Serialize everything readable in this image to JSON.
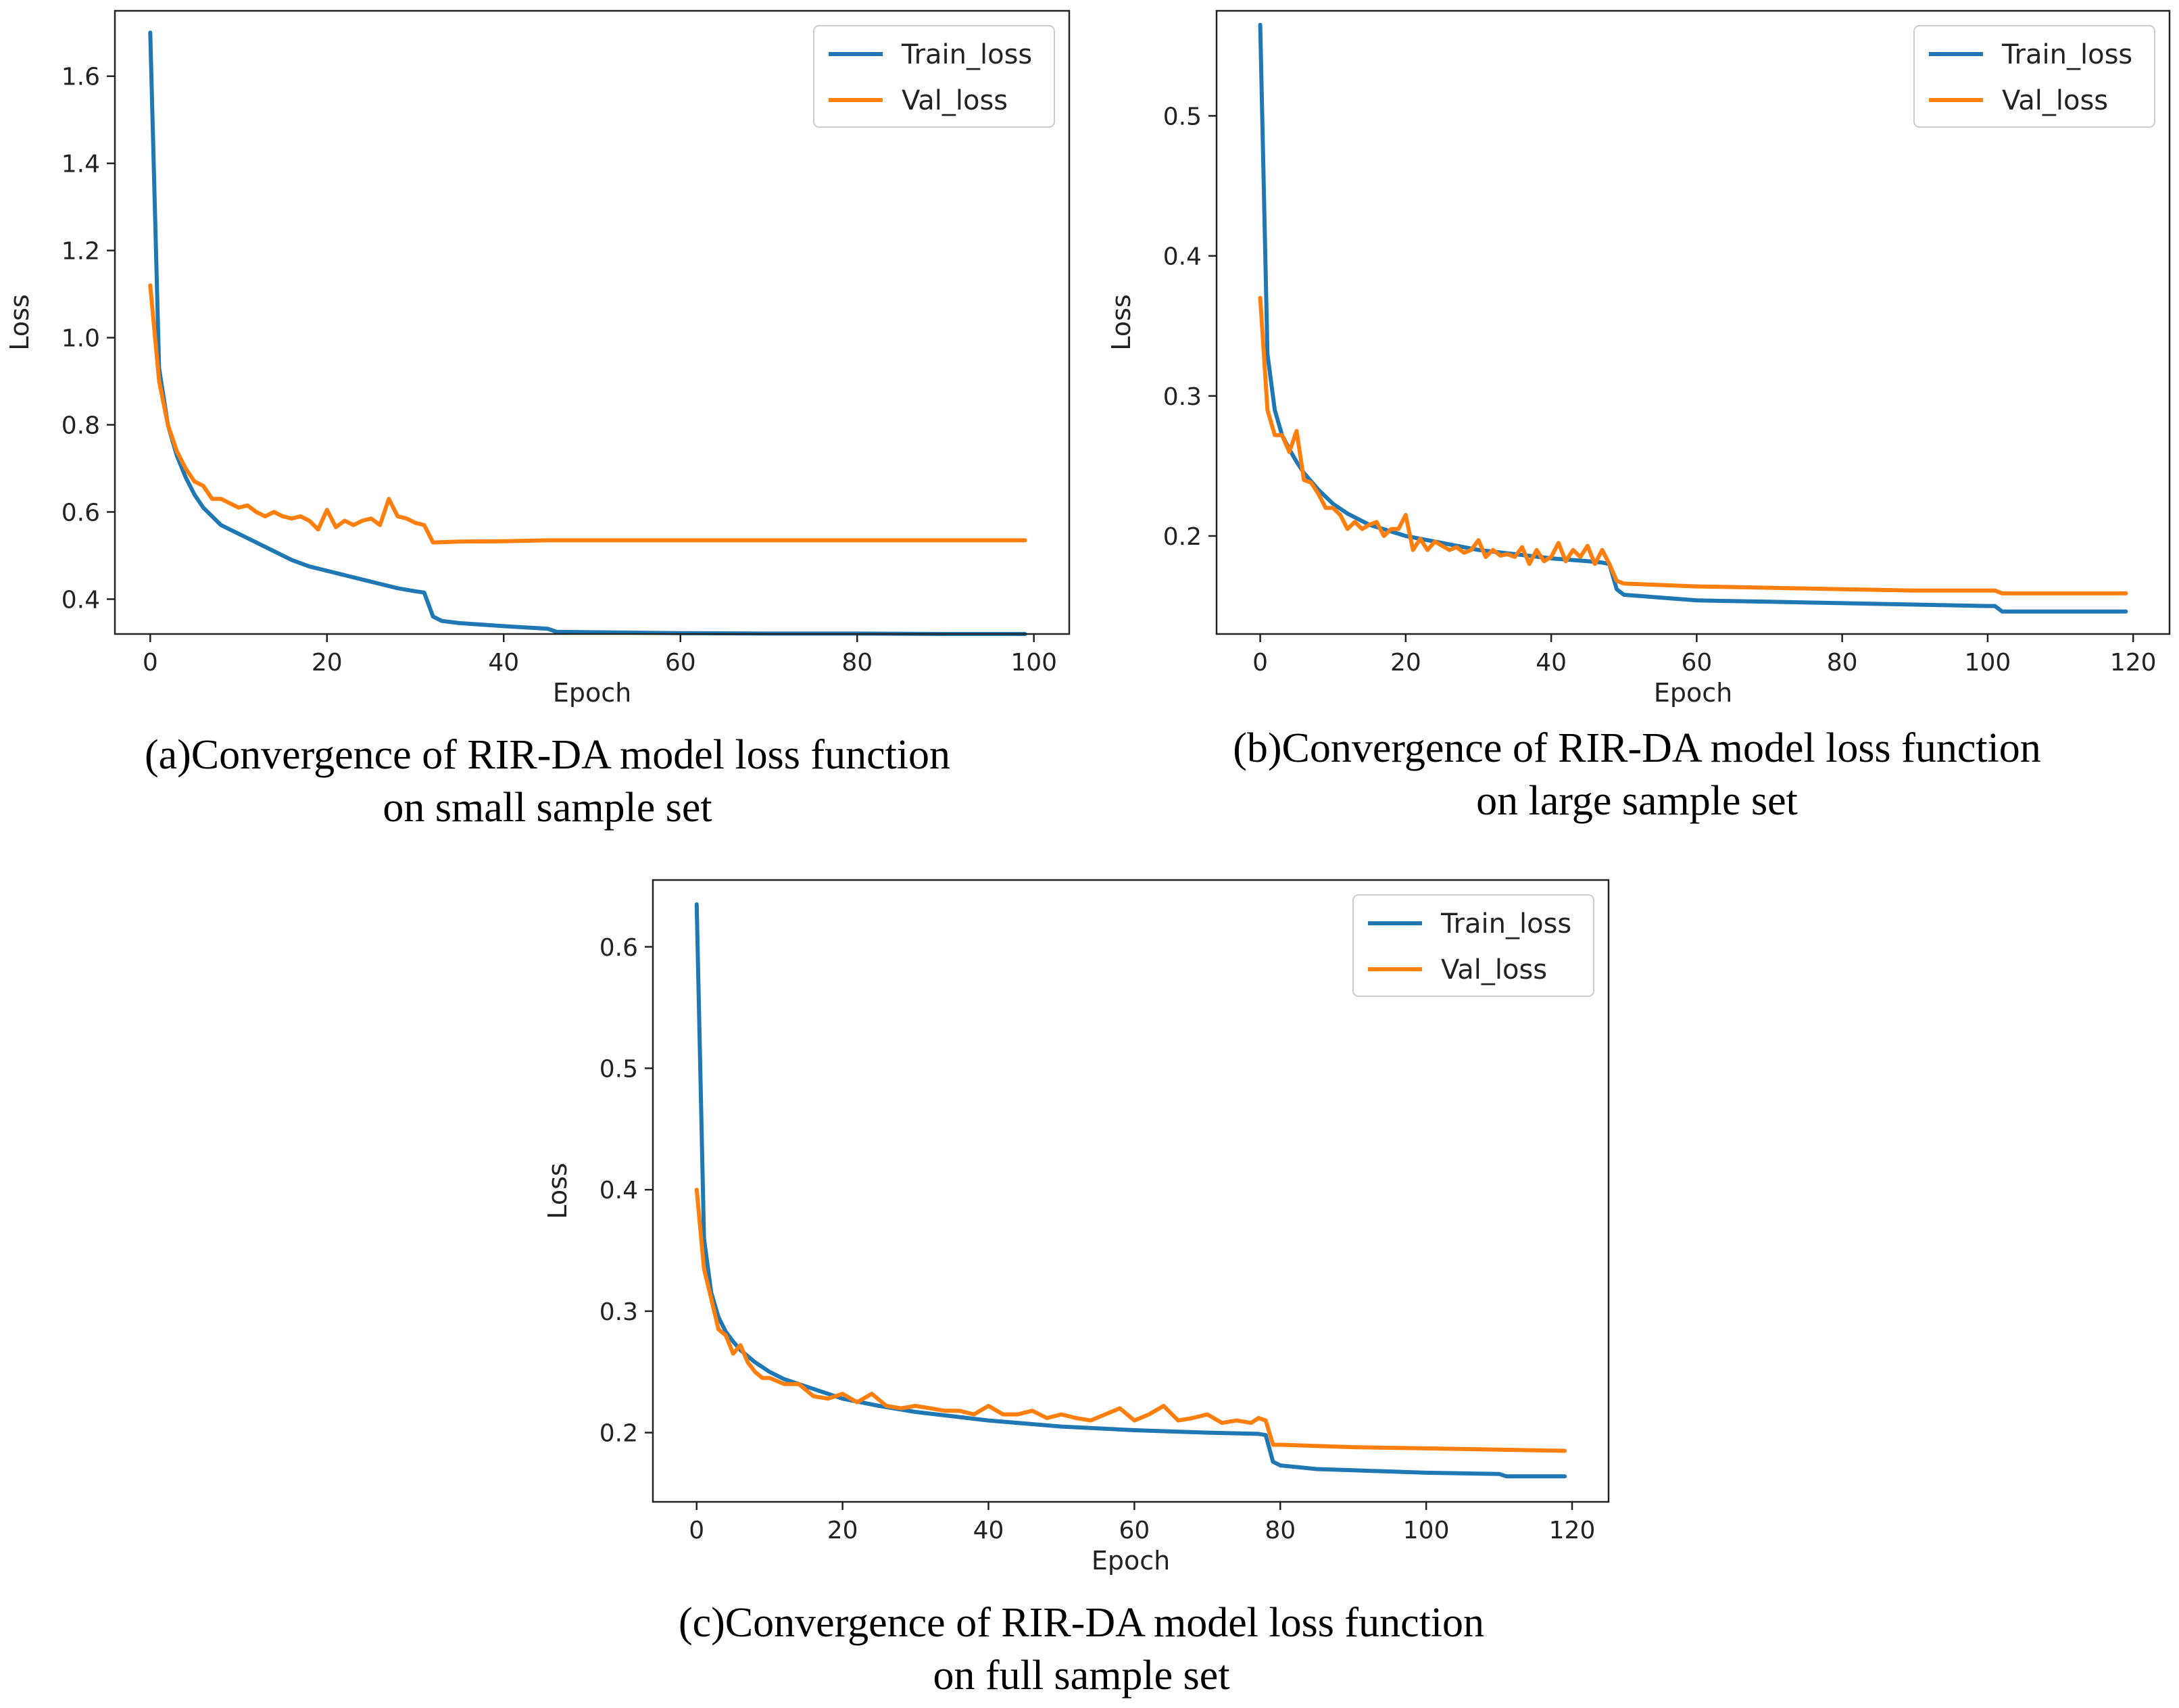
{
  "colors": {
    "train": "#1f77b4",
    "val": "#ff7f0e",
    "axis": "#222222"
  },
  "chart_data": [
    {
      "type": "line",
      "id": "a",
      "xlabel": "Epoch",
      "ylabel": "Loss",
      "xlim": [
        -4,
        104
      ],
      "ylim": [
        0.32,
        1.75
      ],
      "xticks": [
        0,
        20,
        40,
        60,
        80,
        100
      ],
      "yticks": [
        0.4,
        0.6,
        0.8,
        1.0,
        1.2,
        1.4,
        1.6
      ],
      "ytick_decimals": 1,
      "legend": {
        "position": "top-right",
        "entries": [
          "Train_loss",
          "Val_loss"
        ]
      },
      "caption": [
        "(a)Convergence of RIR-DA model loss function",
        "on small sample set"
      ],
      "series": [
        {
          "name": "Train_loss",
          "color_key": "train",
          "x": [
            0,
            1,
            2,
            3,
            4,
            5,
            6,
            7,
            8,
            10,
            12,
            14,
            16,
            18,
            20,
            22,
            24,
            26,
            28,
            30,
            31,
            32,
            33,
            35,
            40,
            45,
            46,
            50,
            60,
            70,
            80,
            90,
            99
          ],
          "y": [
            1.7,
            0.93,
            0.8,
            0.73,
            0.68,
            0.64,
            0.61,
            0.59,
            0.57,
            0.55,
            0.53,
            0.51,
            0.49,
            0.475,
            0.465,
            0.455,
            0.445,
            0.435,
            0.425,
            0.418,
            0.415,
            0.36,
            0.35,
            0.345,
            0.338,
            0.332,
            0.325,
            0.324,
            0.322,
            0.321,
            0.321,
            0.32,
            0.32
          ]
        },
        {
          "name": "Val_loss",
          "color_key": "val",
          "x": [
            0,
            1,
            2,
            3,
            4,
            5,
            6,
            7,
            8,
            9,
            10,
            11,
            12,
            13,
            14,
            15,
            16,
            17,
            18,
            19,
            20,
            21,
            22,
            23,
            24,
            25,
            26,
            27,
            28,
            29,
            30,
            31,
            32,
            35,
            40,
            45,
            50,
            60,
            70,
            80,
            90,
            99
          ],
          "y": [
            1.12,
            0.9,
            0.8,
            0.74,
            0.7,
            0.67,
            0.66,
            0.63,
            0.63,
            0.62,
            0.61,
            0.615,
            0.6,
            0.59,
            0.6,
            0.59,
            0.585,
            0.59,
            0.58,
            0.56,
            0.605,
            0.565,
            0.58,
            0.57,
            0.58,
            0.585,
            0.57,
            0.63,
            0.59,
            0.585,
            0.575,
            0.57,
            0.53,
            0.532,
            0.533,
            0.535,
            0.535,
            0.535,
            0.535,
            0.535,
            0.535,
            0.535
          ]
        }
      ]
    },
    {
      "type": "line",
      "id": "b",
      "xlabel": "Epoch",
      "ylabel": "Loss",
      "xlim": [
        -6,
        125
      ],
      "ylim": [
        0.13,
        0.575
      ],
      "xticks": [
        0,
        20,
        40,
        60,
        80,
        100,
        120
      ],
      "yticks": [
        0.2,
        0.3,
        0.4,
        0.5
      ],
      "ytick_decimals": 1,
      "legend": {
        "position": "top-right",
        "entries": [
          "Train_loss",
          "Val_loss"
        ]
      },
      "caption": [
        "(b)Convergence of RIR-DA model loss function",
        "on large sample set"
      ],
      "series": [
        {
          "name": "Train_loss",
          "color_key": "train",
          "x": [
            0,
            1,
            2,
            3,
            4,
            5,
            6,
            8,
            10,
            12,
            15,
            20,
            25,
            30,
            35,
            40,
            45,
            47,
            48,
            49,
            50,
            55,
            60,
            70,
            80,
            90,
            100,
            101,
            102,
            110,
            119
          ],
          "y": [
            0.565,
            0.33,
            0.29,
            0.272,
            0.262,
            0.253,
            0.245,
            0.233,
            0.223,
            0.216,
            0.208,
            0.2,
            0.195,
            0.19,
            0.187,
            0.184,
            0.182,
            0.181,
            0.18,
            0.162,
            0.158,
            0.156,
            0.154,
            0.153,
            0.152,
            0.151,
            0.15,
            0.15,
            0.146,
            0.146,
            0.146
          ]
        },
        {
          "name": "Val_loss",
          "color_key": "val",
          "x": [
            0,
            1,
            2,
            3,
            4,
            5,
            6,
            7,
            8,
            9,
            10,
            11,
            12,
            13,
            14,
            15,
            16,
            17,
            18,
            19,
            20,
            21,
            22,
            23,
            24,
            25,
            26,
            27,
            28,
            29,
            30,
            31,
            32,
            33,
            34,
            35,
            36,
            37,
            38,
            39,
            40,
            41,
            42,
            43,
            44,
            45,
            46,
            47,
            48,
            49,
            50,
            60,
            70,
            80,
            90,
            100,
            101,
            102,
            110,
            119
          ],
          "y": [
            0.37,
            0.29,
            0.272,
            0.272,
            0.26,
            0.275,
            0.24,
            0.238,
            0.23,
            0.22,
            0.22,
            0.215,
            0.205,
            0.21,
            0.205,
            0.208,
            0.21,
            0.2,
            0.205,
            0.205,
            0.215,
            0.19,
            0.198,
            0.19,
            0.196,
            0.193,
            0.19,
            0.192,
            0.188,
            0.19,
            0.197,
            0.185,
            0.19,
            0.186,
            0.187,
            0.185,
            0.192,
            0.18,
            0.19,
            0.182,
            0.185,
            0.195,
            0.182,
            0.19,
            0.185,
            0.193,
            0.18,
            0.19,
            0.18,
            0.168,
            0.166,
            0.164,
            0.163,
            0.162,
            0.161,
            0.161,
            0.161,
            0.159,
            0.159,
            0.159
          ]
        }
      ]
    },
    {
      "type": "line",
      "id": "c",
      "xlabel": "Epoch",
      "ylabel": "Loss",
      "xlim": [
        -6,
        125
      ],
      "ylim": [
        0.143,
        0.655
      ],
      "xticks": [
        0,
        20,
        40,
        60,
        80,
        100,
        120
      ],
      "yticks": [
        0.2,
        0.3,
        0.4,
        0.5,
        0.6
      ],
      "ytick_decimals": 1,
      "legend": {
        "position": "top-right",
        "entries": [
          "Train_loss",
          "Val_loss"
        ]
      },
      "caption": [
        "(c)Convergence of RIR-DA model loss function",
        "on full sample set"
      ],
      "series": [
        {
          "name": "Train_loss",
          "color_key": "train",
          "x": [
            0,
            1,
            2,
            3,
            4,
            5,
            6,
            8,
            10,
            12,
            15,
            20,
            25,
            30,
            40,
            50,
            60,
            70,
            77,
            78,
            79,
            80,
            85,
            90,
            100,
            110,
            111,
            119
          ],
          "y": [
            0.635,
            0.36,
            0.315,
            0.295,
            0.283,
            0.275,
            0.268,
            0.258,
            0.25,
            0.244,
            0.238,
            0.228,
            0.222,
            0.217,
            0.21,
            0.205,
            0.202,
            0.2,
            0.199,
            0.198,
            0.176,
            0.173,
            0.17,
            0.169,
            0.167,
            0.166,
            0.164,
            0.164
          ]
        },
        {
          "name": "Val_loss",
          "color_key": "val",
          "x": [
            0,
            1,
            2,
            3,
            4,
            5,
            6,
            7,
            8,
            9,
            10,
            12,
            14,
            16,
            18,
            20,
            22,
            24,
            26,
            28,
            30,
            32,
            34,
            36,
            38,
            40,
            42,
            44,
            46,
            48,
            50,
            52,
            54,
            56,
            58,
            60,
            62,
            64,
            66,
            68,
            70,
            72,
            74,
            76,
            77,
            78,
            79,
            80,
            90,
            100,
            110,
            119
          ],
          "y": [
            0.4,
            0.335,
            0.31,
            0.285,
            0.28,
            0.265,
            0.272,
            0.258,
            0.25,
            0.245,
            0.245,
            0.24,
            0.24,
            0.23,
            0.228,
            0.232,
            0.225,
            0.232,
            0.222,
            0.22,
            0.222,
            0.22,
            0.218,
            0.218,
            0.215,
            0.222,
            0.215,
            0.215,
            0.218,
            0.212,
            0.215,
            0.212,
            0.21,
            0.215,
            0.22,
            0.21,
            0.215,
            0.222,
            0.21,
            0.212,
            0.215,
            0.208,
            0.21,
            0.208,
            0.212,
            0.21,
            0.19,
            0.19,
            0.188,
            0.187,
            0.186,
            0.185
          ]
        }
      ]
    }
  ]
}
